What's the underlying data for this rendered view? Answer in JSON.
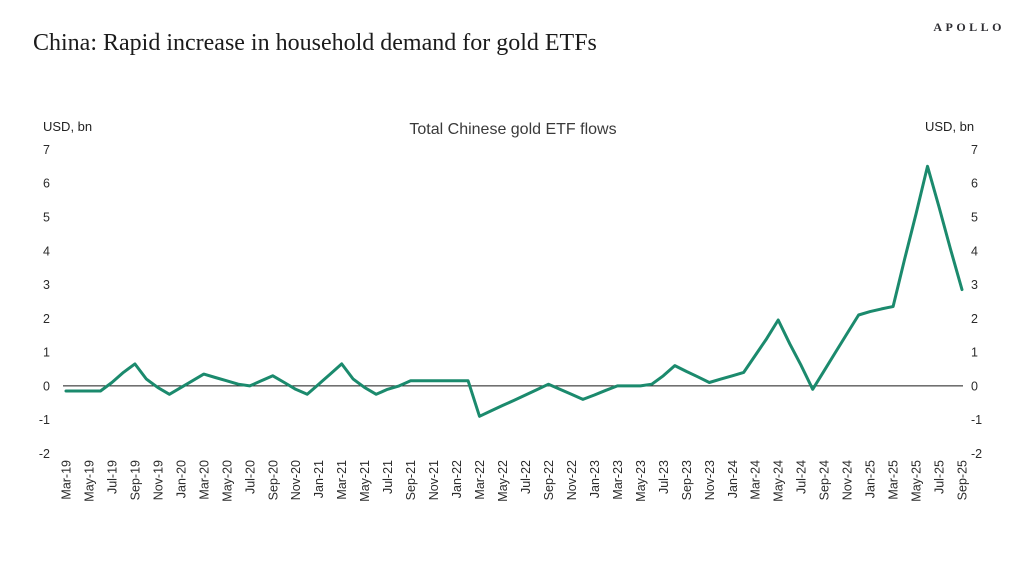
{
  "header": {
    "logo": "APOLLO",
    "title": "China: Rapid increase in household demand for gold ETFs"
  },
  "chart": {
    "title": "Total Chinese gold ETF flows",
    "left_unit": "USD, bn",
    "right_unit": "USD, bn"
  },
  "chart_data": {
    "type": "line",
    "title": "Total Chinese gold ETF flows",
    "xlabel": "",
    "ylabel": "USD, bn",
    "ylim": [
      -2,
      7
    ],
    "yticks": [
      7,
      6,
      5,
      4,
      3,
      2,
      1,
      0,
      -1,
      -2
    ],
    "grid": "off",
    "legend": "none",
    "line_color": "#1B8A6D",
    "axis_color": "#1a1a1a",
    "x": [
      "Mar-19",
      "Apr-19",
      "May-19",
      "Jun-19",
      "Jul-19",
      "Aug-19",
      "Sep-19",
      "Oct-19",
      "Nov-19",
      "Dec-19",
      "Jan-20",
      "Feb-20",
      "Mar-20",
      "Apr-20",
      "May-20",
      "Jun-20",
      "Jul-20",
      "Aug-20",
      "Sep-20",
      "Oct-20",
      "Nov-20",
      "Dec-20",
      "Jan-21",
      "Feb-21",
      "Mar-21",
      "Apr-21",
      "May-21",
      "Jun-21",
      "Jul-21",
      "Aug-21",
      "Sep-21",
      "Oct-21",
      "Nov-21",
      "Dec-21",
      "Jan-22",
      "Feb-22",
      "Mar-22",
      "Apr-22",
      "May-22",
      "Jun-22",
      "Jul-22",
      "Aug-22",
      "Sep-22",
      "Oct-22",
      "Nov-22",
      "Dec-22",
      "Jan-23",
      "Feb-23",
      "Mar-23",
      "Apr-23",
      "May-23",
      "Jun-23",
      "Jul-23",
      "Aug-23",
      "Sep-23",
      "Oct-23",
      "Nov-23",
      "Dec-23",
      "Jan-24",
      "Feb-24",
      "Mar-24",
      "Apr-24",
      "May-24",
      "Jun-24",
      "Jul-24",
      "Aug-24",
      "Sep-24",
      "Oct-24",
      "Nov-24",
      "Dec-24",
      "Jan-25",
      "Feb-25",
      "Mar-25",
      "Apr-25",
      "May-25",
      "Jun-25",
      "Jul-25",
      "Aug-25",
      "Sep-25"
    ],
    "values": [
      -0.15,
      -0.15,
      -0.15,
      -0.15,
      0.1,
      0.4,
      0.65,
      0.2,
      -0.05,
      -0.25,
      -0.05,
      0.15,
      0.35,
      0.25,
      0.15,
      0.05,
      0.0,
      0.15,
      0.3,
      0.1,
      -0.1,
      -0.25,
      0.05,
      0.35,
      0.65,
      0.2,
      -0.05,
      -0.25,
      -0.1,
      0.0,
      0.15,
      0.15,
      0.15,
      0.15,
      0.15,
      0.15,
      -0.9,
      -0.74,
      -0.58,
      -0.43,
      -0.27,
      -0.11,
      0.05,
      -0.1,
      -0.25,
      -0.4,
      -0.27,
      -0.13,
      0.0,
      0.0,
      0.0,
      0.05,
      0.3,
      0.6,
      0.43,
      0.27,
      0.1,
      0.2,
      0.3,
      0.4,
      0.9,
      1.4,
      1.95,
      1.25,
      0.6,
      -0.1,
      0.45,
      1.0,
      1.55,
      2.1,
      2.2,
      2.28,
      2.35,
      3.75,
      5.1,
      6.5,
      5.3,
      4.05,
      2.85
    ],
    "xtick_labels": [
      "Mar-19",
      "May-19",
      "Jul-19",
      "Sep-19",
      "Nov-19",
      "Jan-20",
      "Mar-20",
      "May-20",
      "Jul-20",
      "Sep-20",
      "Nov-20",
      "Jan-21",
      "Mar-21",
      "May-21",
      "Jul-21",
      "Sep-21",
      "Nov-21",
      "Jan-22",
      "Mar-22",
      "May-22",
      "Jul-22",
      "Sep-22",
      "Nov-22",
      "Jan-23",
      "Mar-23",
      "May-23",
      "Jul-23",
      "Sep-23",
      "Nov-23",
      "Jan-24",
      "Mar-24",
      "May-24",
      "Jul-24",
      "Sep-24",
      "Nov-24",
      "Jan-25",
      "Mar-25",
      "May-25",
      "Jul-25",
      "Sep-25"
    ]
  }
}
